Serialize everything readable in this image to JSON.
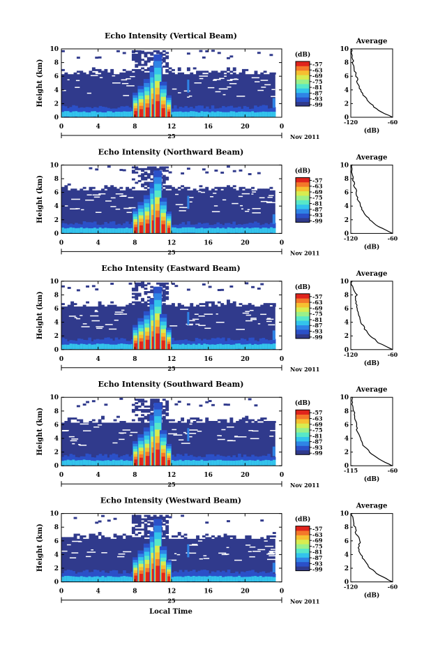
{
  "figure": {
    "x_axis_title": "Local Time",
    "colorbar_label": "(dB)",
    "colorbar_ticks": [
      "-57",
      "-63",
      "-69",
      "-75",
      "-81",
      "-87",
      "-93",
      "-99"
    ],
    "date_label": "Nov 2011",
    "date_day": "25",
    "average_title": "Average",
    "average_xlabel": "(dB)"
  },
  "colors": {
    "colormap": [
      "#303a8c",
      "#2b50c8",
      "#2f84e6",
      "#33c4ec",
      "#58e8c8",
      "#9af08a",
      "#d8ec50",
      "#f6c031",
      "#f4782a",
      "#e0241c"
    ],
    "background": "#ffffff",
    "axis": "#000000"
  },
  "chart_data": [
    {
      "type": "heatmap",
      "title": "Echo Intensity (Vertical Beam)",
      "xlabel": "Local Time",
      "ylabel": "Height (km)",
      "xlim": [
        0,
        24
      ],
      "ylim": [
        0,
        10
      ],
      "x_ticks": [
        "0",
        "4",
        "8",
        "12",
        "16",
        "20",
        "0"
      ],
      "y_ticks": [
        "0",
        "2",
        "4",
        "6",
        "8",
        "10"
      ],
      "colorbar": {
        "range": [
          -99,
          -57
        ],
        "unit": "dB"
      },
      "average_profile": {
        "xlim": [
          -120,
          -60
        ],
        "x_ticks": [
          "-120",
          "-60"
        ],
        "height_km": [
          0,
          1,
          2,
          3,
          4,
          5,
          6,
          7,
          8,
          9,
          10
        ],
        "db": [
          -60,
          -80,
          -92,
          -100,
          -106,
          -110,
          -112,
          -115,
          -117,
          -118,
          -119
        ]
      }
    },
    {
      "type": "heatmap",
      "title": "Echo Intensity (Northward Beam)",
      "xlabel": "Local Time",
      "ylabel": "Height (km)",
      "xlim": [
        0,
        24
      ],
      "ylim": [
        0,
        10
      ],
      "x_ticks": [
        "0",
        "4",
        "8",
        "12",
        "16",
        "20",
        "0"
      ],
      "y_ticks": [
        "0",
        "2",
        "4",
        "6",
        "8",
        "10"
      ],
      "colorbar": {
        "range": [
          -99,
          -57
        ],
        "unit": "dB"
      },
      "average_profile": {
        "xlim": [
          -120,
          -60
        ],
        "x_ticks": [
          "-120",
          "-60"
        ],
        "height_km": [
          0,
          1,
          2,
          3,
          4,
          5,
          6,
          7,
          8,
          9,
          10
        ],
        "db": [
          -60,
          -81,
          -93,
          -101,
          -106,
          -110,
          -112,
          -115,
          -117,
          -118,
          -119
        ]
      }
    },
    {
      "type": "heatmap",
      "title": "Echo Intensity (Eastward Beam)",
      "xlabel": "Local Time",
      "ylabel": "Height (km)",
      "xlim": [
        0,
        24
      ],
      "ylim": [
        0,
        10
      ],
      "x_ticks": [
        "0",
        "4",
        "8",
        "12",
        "16",
        "20",
        "0"
      ],
      "y_ticks": [
        "0",
        "2",
        "4",
        "6",
        "8",
        "10"
      ],
      "colorbar": {
        "range": [
          -99,
          -57
        ],
        "unit": "dB"
      },
      "average_profile": {
        "xlim": [
          -120,
          -60
        ],
        "x_ticks": [
          "-120",
          "-60"
        ],
        "height_km": [
          0,
          1,
          2,
          3,
          4,
          5,
          6,
          7,
          8,
          9,
          10
        ],
        "db": [
          -60,
          -80,
          -92,
          -100,
          -105,
          -108,
          -111,
          -113,
          -112,
          -117,
          -119
        ]
      }
    },
    {
      "type": "heatmap",
      "title": "Echo Intensity (Southward Beam)",
      "xlabel": "Local Time",
      "ylabel": "Height (km)",
      "xlim": [
        0,
        24
      ],
      "ylim": [
        0,
        10
      ],
      "x_ticks": [
        "0",
        "4",
        "8",
        "12",
        "16",
        "20",
        "0"
      ],
      "y_ticks": [
        "0",
        "2",
        "4",
        "6",
        "8",
        "10"
      ],
      "colorbar": {
        "range": [
          -99,
          -57
        ],
        "unit": "dB"
      },
      "average_profile": {
        "xlim": [
          -115,
          -60
        ],
        "x_ticks": [
          "-115",
          "-60"
        ],
        "height_km": [
          0,
          1,
          2,
          3,
          4,
          5,
          6,
          7,
          8,
          9,
          10
        ],
        "db": [
          -60,
          -78,
          -90,
          -98,
          -103,
          -106,
          -108,
          -110,
          -111,
          -113,
          -114
        ]
      }
    },
    {
      "type": "heatmap",
      "title": "Echo Intensity (Westward Beam)",
      "xlabel": "Local Time",
      "ylabel": "Height (km)",
      "xlim": [
        0,
        24
      ],
      "ylim": [
        0,
        10
      ],
      "x_ticks": [
        "0",
        "4",
        "8",
        "12",
        "16",
        "20",
        "0"
      ],
      "y_ticks": [
        "0",
        "2",
        "4",
        "6",
        "8",
        "10"
      ],
      "colorbar": {
        "range": [
          -99,
          -57
        ],
        "unit": "dB"
      },
      "average_profile": {
        "xlim": [
          -120,
          -60
        ],
        "x_ticks": [
          "-120",
          "-60"
        ],
        "height_km": [
          0,
          1,
          2,
          3,
          4,
          5,
          6,
          7,
          8,
          9,
          10
        ],
        "db": [
          -60,
          -80,
          -92,
          -100,
          -106,
          -109,
          -106,
          -112,
          -114,
          -117,
          -119
        ]
      }
    }
  ]
}
